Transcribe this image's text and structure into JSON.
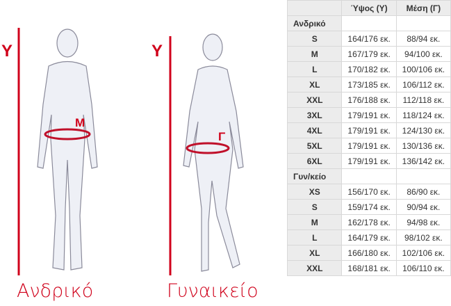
{
  "figures": {
    "men_label": "Ανδρικό",
    "women_label": "Γυναικείο",
    "height_marker": "Υ",
    "men_waist_marker": "Μ",
    "women_waist_marker": "Γ",
    "accent_color": "#d0021b"
  },
  "table": {
    "headers": [
      "",
      "Ύψος (Υ)",
      "Μέση (Γ)"
    ],
    "groups": [
      {
        "name": "Ανδρικό",
        "rows": [
          [
            "S",
            "164/176 εκ.",
            "88/94 εκ."
          ],
          [
            "M",
            "167/179 εκ.",
            "94/100 εκ."
          ],
          [
            "L",
            "170/182 εκ.",
            "100/106 εκ."
          ],
          [
            "XL",
            "173/185 εκ.",
            "106/112 εκ."
          ],
          [
            "XXL",
            "176/188 εκ.",
            "112/118 εκ."
          ],
          [
            "3XL",
            "179/191 εκ.",
            "118/124 εκ."
          ],
          [
            "4XL",
            "179/191 εκ.",
            "124/130 εκ."
          ],
          [
            "5XL",
            "179/191 εκ.",
            "130/136 εκ."
          ],
          [
            "6XL",
            "179/191 εκ.",
            "136/142 εκ."
          ]
        ]
      },
      {
        "name": "Γυν/κείο",
        "rows": [
          [
            "XS",
            "156/170 εκ.",
            "86/90 εκ."
          ],
          [
            "S",
            "159/174 εκ.",
            "90/94 εκ."
          ],
          [
            "M",
            "162/178 εκ.",
            "94/98 εκ."
          ],
          [
            "L",
            "164/179 εκ.",
            "98/102 εκ."
          ],
          [
            "XL",
            "166/180 εκ.",
            "102/106 εκ."
          ],
          [
            "XXL",
            "168/181 εκ.",
            "106/110 εκ."
          ]
        ]
      }
    ]
  }
}
